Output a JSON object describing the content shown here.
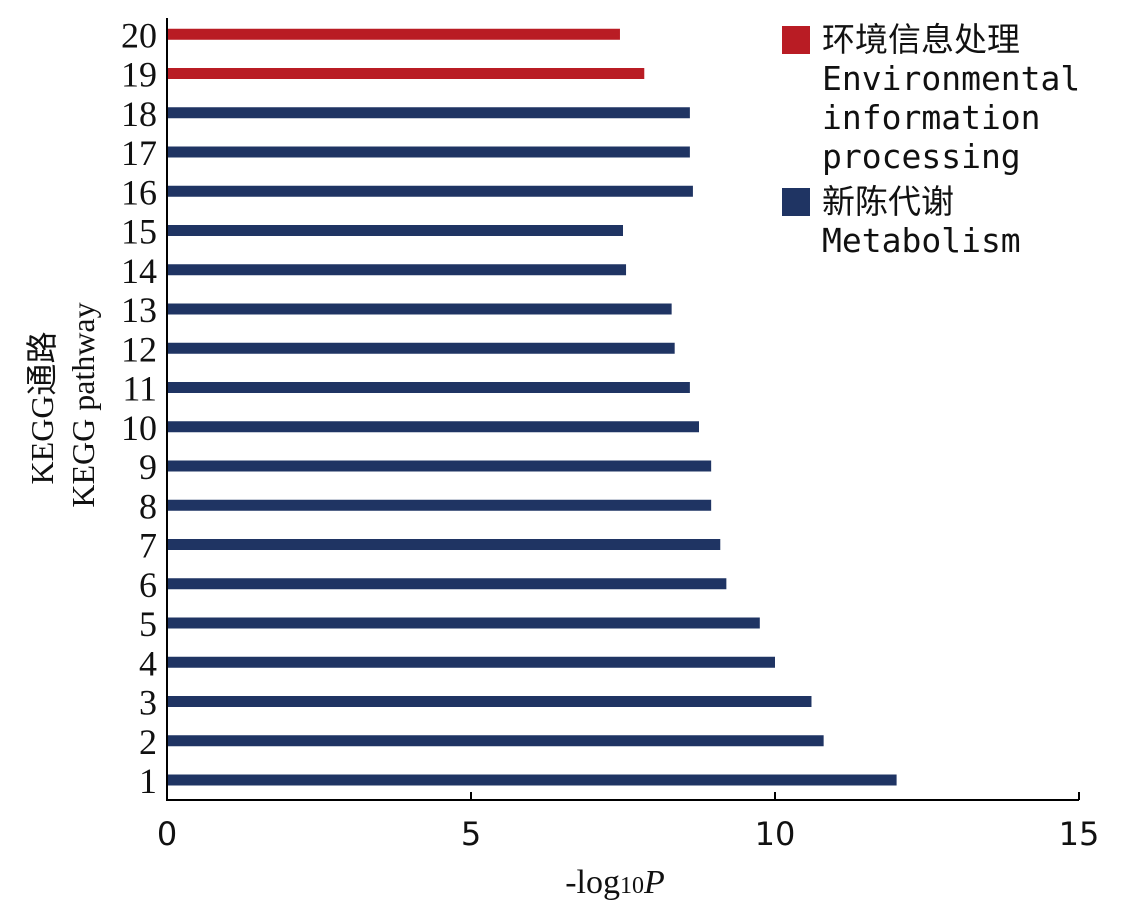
{
  "chart_data": {
    "type": "bar",
    "orientation": "horizontal",
    "categories": [
      "1",
      "2",
      "3",
      "4",
      "5",
      "6",
      "7",
      "8",
      "9",
      "10",
      "11",
      "12",
      "13",
      "14",
      "15",
      "16",
      "17",
      "18",
      "19",
      "20"
    ],
    "values": [
      12.0,
      10.8,
      10.6,
      10.0,
      9.75,
      9.2,
      9.1,
      8.95,
      8.95,
      8.75,
      8.6,
      8.35,
      8.3,
      7.55,
      7.5,
      8.65,
      8.6,
      8.6,
      7.85,
      7.45
    ],
    "groups": [
      "Metabolism",
      "Metabolism",
      "Metabolism",
      "Metabolism",
      "Metabolism",
      "Metabolism",
      "Metabolism",
      "Metabolism",
      "Metabolism",
      "Metabolism",
      "Metabolism",
      "Metabolism",
      "Metabolism",
      "Metabolism",
      "Metabolism",
      "Metabolism",
      "Metabolism",
      "Metabolism",
      "Environmental information processing",
      "Environmental information processing"
    ],
    "xlabel_prefix": "-log",
    "xlabel_sub": "10",
    "xlabel_var": "P",
    "ylabel_cn": "KEGG通路",
    "ylabel_en": "KEGG pathway",
    "xlim": [
      0,
      15
    ],
    "xticks": [
      0,
      5,
      10,
      15
    ],
    "grid": false,
    "legend_position": "top-right",
    "legend": [
      {
        "label_cn": "环境信息处理",
        "label_en_lines": [
          "Environmental",
          "information",
          "processing"
        ],
        "color": "#b91c24"
      },
      {
        "label_cn": "新陈代谢",
        "label_en_lines": [
          "Metabolism"
        ],
        "color": "#1f3463"
      }
    ],
    "colors": {
      "Environmental information processing": "#b91c24",
      "Metabolism": "#1f3463"
    }
  }
}
